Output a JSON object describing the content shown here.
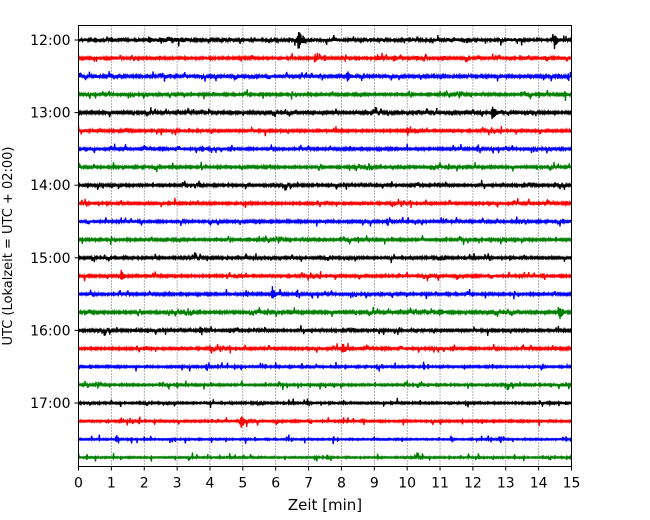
{
  "chart_data": {
    "type": "line",
    "title": "",
    "xlabel": "Zeit  [min]",
    "ylabel": "UTC (Lokalzeit = UTC + 02:00)",
    "xlim": [
      0,
      15
    ],
    "x_ticks": [
      0,
      1,
      2,
      3,
      4,
      5,
      6,
      7,
      8,
      9,
      10,
      11,
      12,
      13,
      14,
      15
    ],
    "y_tick_labels": [
      "12:00",
      "13:00",
      "14:00",
      "15:00",
      "16:00",
      "17:00"
    ],
    "trace_interval_min": 15,
    "grid": "vertical dotted lines at each minute",
    "color_cycle": [
      "#000000",
      "#ff0000",
      "#0000ff",
      "#008000"
    ],
    "traces": [
      {
        "start": "12:00",
        "color": "#000000",
        "noise": 0.45,
        "events": [
          {
            "t": 0.5,
            "a": 0.6
          },
          {
            "t": 1.0,
            "a": 0.5
          },
          {
            "t": 2.15,
            "a": 0.9
          },
          {
            "t": 2.5,
            "a": 0.8
          },
          {
            "t": 2.85,
            "a": 0.7
          },
          {
            "t": 3.15,
            "a": 0.6
          },
          {
            "t": 6.7,
            "a": 3.0
          },
          {
            "t": 14.5,
            "a": 1.6
          }
        ]
      },
      {
        "start": "12:15",
        "color": "#ff0000",
        "noise": 0.3,
        "events": [
          {
            "t": 7.2,
            "a": 1.2
          },
          {
            "t": 7.5,
            "a": 1.0
          },
          {
            "t": 9.1,
            "a": 0.9
          },
          {
            "t": 9.6,
            "a": 0.9
          },
          {
            "t": 10.3,
            "a": 0.7
          },
          {
            "t": 11.1,
            "a": 0.7
          },
          {
            "t": 14.2,
            "a": 0.6
          }
        ]
      },
      {
        "start": "12:30",
        "color": "#0000ff",
        "noise": 0.35,
        "events": [
          {
            "t": 0.5,
            "a": 0.6
          },
          {
            "t": 8.2,
            "a": 1.8
          },
          {
            "t": 14.6,
            "a": 0.6
          }
        ]
      },
      {
        "start": "12:45",
        "color": "#008000",
        "noise": 0.3,
        "events": [
          {
            "t": 14.8,
            "a": 0.7
          }
        ]
      },
      {
        "start": "13:00",
        "color": "#000000",
        "noise": 0.35,
        "events": [
          {
            "t": 12.6,
            "a": 2.4
          }
        ]
      },
      {
        "start": "13:15",
        "color": "#ff0000",
        "noise": 0.3,
        "events": [
          {
            "t": 10.0,
            "a": 1.0
          }
        ]
      },
      {
        "start": "13:30",
        "color": "#0000ff",
        "noise": 0.3,
        "events": [
          {
            "t": 3.75,
            "a": 0.9
          }
        ]
      },
      {
        "start": "13:45",
        "color": "#008000",
        "noise": 0.3,
        "events": []
      },
      {
        "start": "14:00",
        "color": "#000000",
        "noise": 0.3,
        "events": [
          {
            "t": 3.7,
            "a": 0.6
          },
          {
            "t": 14.5,
            "a": 0.6
          }
        ]
      },
      {
        "start": "14:15",
        "color": "#ff0000",
        "noise": 0.3,
        "events": [
          {
            "t": 14.0,
            "a": 0.8
          }
        ]
      },
      {
        "start": "14:30",
        "color": "#0000ff",
        "noise": 0.3,
        "events": [
          {
            "t": 13.5,
            "a": 0.6
          }
        ]
      },
      {
        "start": "14:45",
        "color": "#008000",
        "noise": 0.3,
        "events": []
      },
      {
        "start": "15:00",
        "color": "#000000",
        "noise": 0.3,
        "events": []
      },
      {
        "start": "15:15",
        "color": "#ff0000",
        "noise": 0.3,
        "events": [
          {
            "t": 1.3,
            "a": 1.6
          },
          {
            "t": 10.7,
            "a": 0.6
          }
        ]
      },
      {
        "start": "15:30",
        "color": "#0000ff",
        "noise": 0.3,
        "events": [
          {
            "t": 5.1,
            "a": 1.2
          },
          {
            "t": 5.9,
            "a": 2.0
          }
        ]
      },
      {
        "start": "15:45",
        "color": "#008000",
        "noise": 0.35,
        "events": [
          {
            "t": 11.0,
            "a": 1.0
          },
          {
            "t": 14.65,
            "a": 2.0
          }
        ]
      },
      {
        "start": "16:00",
        "color": "#000000",
        "noise": 0.3,
        "events": [
          {
            "t": 1.7,
            "a": 0.6
          },
          {
            "t": 3.7,
            "a": 1.0
          },
          {
            "t": 10.2,
            "a": 0.6
          }
        ]
      },
      {
        "start": "16:15",
        "color": "#ff0000",
        "noise": 0.3,
        "events": [
          {
            "t": 4.0,
            "a": 0.9
          },
          {
            "t": 8.05,
            "a": 1.5
          },
          {
            "t": 14.5,
            "a": 0.6
          }
        ]
      },
      {
        "start": "16:30",
        "color": "#0000ff",
        "noise": 0.25,
        "events": []
      },
      {
        "start": "16:45",
        "color": "#008000",
        "noise": 0.25,
        "events": []
      },
      {
        "start": "17:00",
        "color": "#000000",
        "noise": 0.25,
        "events": []
      },
      {
        "start": "17:15",
        "color": "#ff0000",
        "noise": 0.25,
        "events": [
          {
            "t": 4.95,
            "a": 2.0
          }
        ]
      },
      {
        "start": "17:30",
        "color": "#0000ff",
        "noise": 0.2,
        "events": []
      },
      {
        "start": "17:45",
        "color": "#008000",
        "noise": 0.2,
        "events": []
      }
    ]
  }
}
